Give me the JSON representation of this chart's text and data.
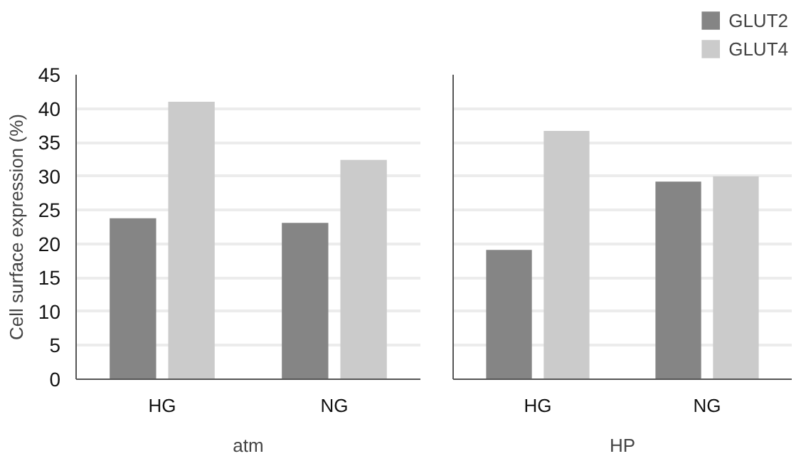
{
  "chart_data": [
    {
      "type": "bar",
      "categories": [
        "HG",
        "NG"
      ],
      "xlabel": "atm",
      "ylabel": "Cell surface expression (%)",
      "ylim": [
        0,
        45
      ],
      "yticks": [
        0,
        5,
        10,
        15,
        20,
        25,
        30,
        35,
        40,
        45
      ],
      "grid": "y",
      "series": [
        {
          "color": "#858585",
          "values": [
            23.8,
            23.1
          ]
        },
        {
          "color": "#cbcbcb",
          "values": [
            41.0,
            32.4
          ]
        }
      ]
    },
    {
      "type": "bar",
      "categories": [
        "HG",
        "NG"
      ],
      "xlabel": "HP",
      "ylim": [
        0,
        45
      ],
      "yticks": [
        0,
        5,
        10,
        15,
        20,
        25,
        30,
        35,
        40,
        45
      ],
      "grid": "y",
      "tick_labels": "x",
      "legend": "top right",
      "series": [
        {
          "name": "GLUT2",
          "color": "#858585",
          "values": [
            19.1,
            29.2
          ]
        },
        {
          "name": "GLUT4",
          "color": "#cbcbcb",
          "values": [
            36.7,
            30.0
          ]
        }
      ]
    }
  ]
}
